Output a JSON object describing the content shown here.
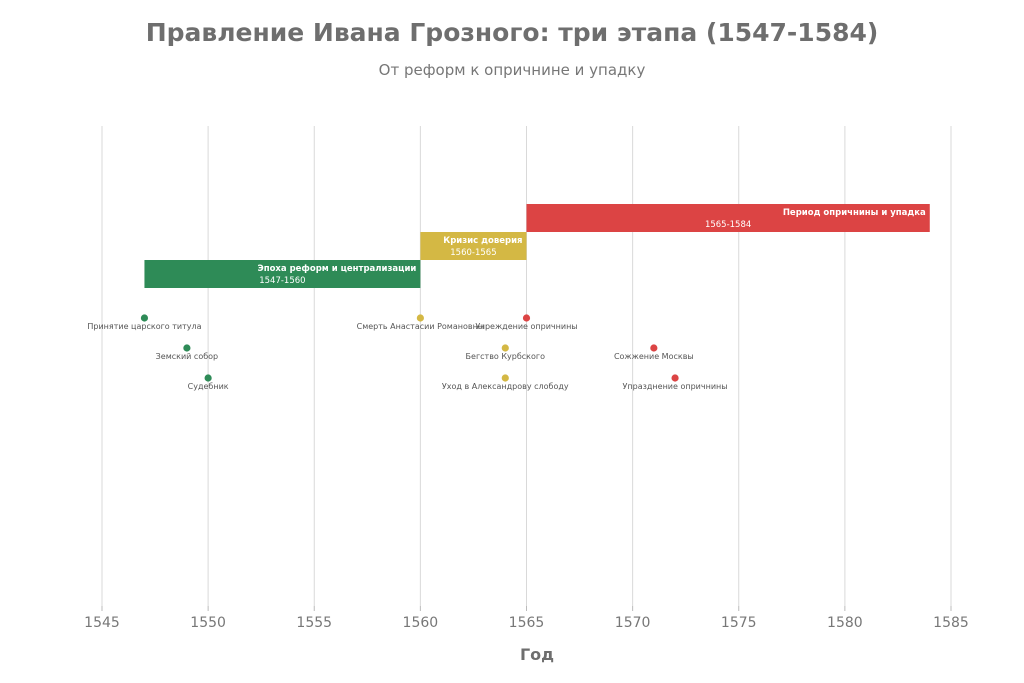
{
  "chart_data": {
    "type": "timeline",
    "title": "Правление Ивана Грозного: три этапа (1547-1584)",
    "subtitle": "От реформ к опричнине и упадку",
    "xlabel": "Год",
    "xlim": [
      1545,
      1585
    ],
    "xticks": [
      1545,
      1550,
      1555,
      1560,
      1565,
      1570,
      1575,
      1580,
      1585
    ],
    "grid": true,
    "periods": [
      {
        "name": "Эпоха реформ и централизации",
        "start": 1547,
        "end": 1560,
        "years_label": "1547-1560",
        "color": "#2e8b57",
        "level": 0
      },
      {
        "name": "Кризис доверия",
        "start": 1560,
        "end": 1565,
        "years_label": "1560-1565",
        "color": "#d4b844",
        "level": 1
      },
      {
        "name": "Период опричнины и упадка",
        "start": 1565,
        "end": 1584,
        "years_label": "1565-1584",
        "color": "#dc4444",
        "level": 2
      }
    ],
    "events": [
      {
        "label": "Принятие царского титула",
        "year": 1547,
        "row": 0,
        "color": "#2e8b57"
      },
      {
        "label": "Земский собор",
        "year": 1549,
        "row": 1,
        "color": "#2e8b57"
      },
      {
        "label": "Судебник",
        "year": 1550,
        "row": 2,
        "color": "#2e8b57"
      },
      {
        "label": "Смерть Анастасии Романовны",
        "year": 1560,
        "row": 0,
        "color": "#d4b844"
      },
      {
        "label": "Бегство Курбского",
        "year": 1564,
        "row": 1,
        "color": "#d4b844"
      },
      {
        "label": "Уход в Александрову слободу",
        "year": 1564,
        "row": 2,
        "color": "#d4b844"
      },
      {
        "label": "Учреждение опричнины",
        "year": 1565,
        "row": 0,
        "color": "#dc4444"
      },
      {
        "label": "Сожжение Москвы",
        "year": 1571,
        "row": 1,
        "color": "#dc4444"
      },
      {
        "label": "Упразднение опричнины",
        "year": 1572,
        "row": 2,
        "color": "#dc4444"
      }
    ]
  }
}
